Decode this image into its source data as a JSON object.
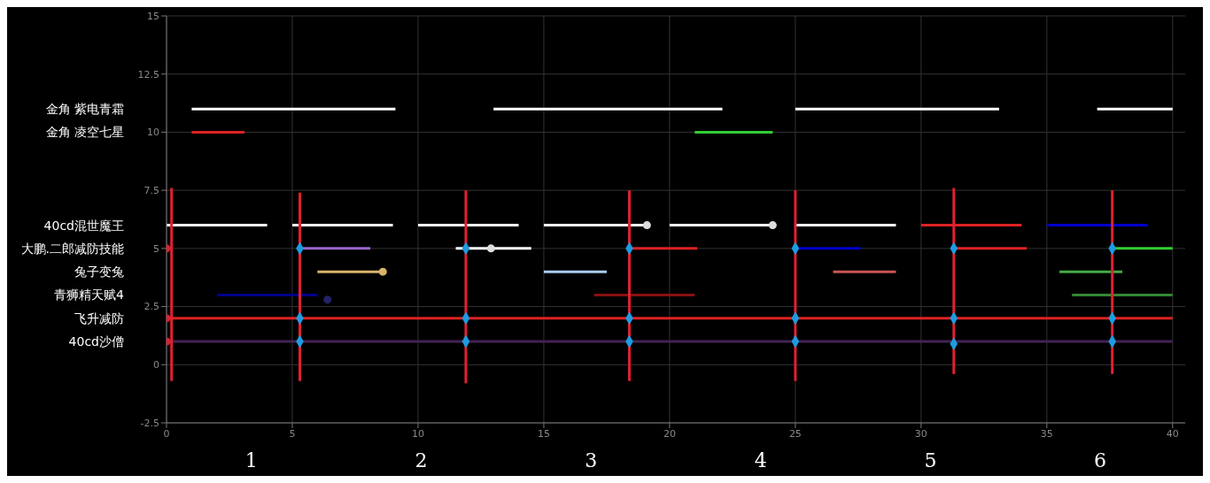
{
  "chart_data": {
    "type": "line",
    "xlim": [
      0,
      40.5
    ],
    "ylim": [
      -2.5,
      15
    ],
    "xticks": [
      0,
      5,
      10,
      15,
      20,
      25,
      30,
      35,
      40
    ],
    "yticks": [
      -2.5,
      0,
      2.5,
      5,
      7.5,
      10,
      12.5,
      15
    ],
    "grid": true,
    "marker": "none",
    "line_style": "solid",
    "annotations": [
      "金角 紫电青霜",
      "金角 凌空七星",
      "40cd混世魔王",
      "大鹏.二郎减防技能",
      "兔子变兔",
      "青狮精天赋4",
      "飞升减防",
      "40cd沙僧",
      "1",
      "2",
      "3",
      "4",
      "5",
      "6"
    ],
    "series": [
      {
        "x": [
          1,
          9.1
        ],
        "values": [
          11,
          11
        ],
        "color": "#ffffff"
      },
      {
        "x": [
          13,
          22.1
        ],
        "values": [
          11,
          11
        ],
        "color": "#ffffff"
      },
      {
        "x": [
          25,
          33.1
        ],
        "values": [
          11,
          11
        ],
        "color": "#ffffff"
      },
      {
        "x": [
          37,
          40
        ],
        "values": [
          11,
          11
        ],
        "color": "#ffffff"
      },
      {
        "x": [
          1,
          3.1
        ],
        "values": [
          10,
          10
        ],
        "color": "#dd2222"
      },
      {
        "x": [
          21,
          24.1
        ],
        "values": [
          10,
          10
        ],
        "color": "#33cc33"
      },
      {
        "x": [
          0,
          4
        ],
        "values": [
          6,
          6
        ],
        "color": "#ffffff"
      },
      {
        "x": [
          5,
          9
        ],
        "values": [
          6,
          6
        ],
        "color": "#ffffff"
      },
      {
        "x": [
          10,
          14
        ],
        "values": [
          6,
          6
        ],
        "color": "#ffffff"
      },
      {
        "x": [
          15,
          19
        ],
        "values": [
          6,
          6
        ],
        "color": "#ffffff"
      },
      {
        "x": [
          20,
          24
        ],
        "values": [
          6,
          6
        ],
        "color": "#ffffff"
      },
      {
        "x": [
          25,
          29
        ],
        "values": [
          6,
          6
        ],
        "color": "#ffffff"
      },
      {
        "x": [
          30,
          34
        ],
        "values": [
          6,
          6
        ],
        "color": "#dd2222"
      },
      {
        "x": [
          35,
          39
        ],
        "values": [
          6,
          6
        ],
        "color": "#0000cc"
      },
      {
        "x": [
          5.3,
          8.1
        ],
        "values": [
          5,
          5
        ],
        "color": "#9966cc"
      },
      {
        "x": [
          11.5,
          14.5
        ],
        "values": [
          5,
          5
        ],
        "color": "#ffffff"
      },
      {
        "x": [
          18.3,
          21.1
        ],
        "values": [
          5,
          5
        ],
        "color": "#dd2222"
      },
      {
        "x": [
          25,
          27.6
        ],
        "values": [
          5,
          5
        ],
        "color": "#0000cc"
      },
      {
        "x": [
          31.2,
          34.2
        ],
        "values": [
          5,
          5
        ],
        "color": "#dd2222"
      },
      {
        "x": [
          37.6,
          40
        ],
        "values": [
          5,
          5
        ],
        "color": "#33cc33"
      },
      {
        "x": [
          6,
          8.6
        ],
        "values": [
          4,
          4
        ],
        "color": "#d9b36c"
      },
      {
        "x": [
          15,
          17.5
        ],
        "values": [
          4,
          4
        ],
        "color": "#aaccee"
      },
      {
        "x": [
          26.5,
          29
        ],
        "values": [
          4,
          4
        ],
        "color": "#cc5555"
      },
      {
        "x": [
          35.5,
          38
        ],
        "values": [
          4,
          4
        ],
        "color": "#44aa44"
      },
      {
        "x": [
          2,
          6
        ],
        "values": [
          3,
          3
        ],
        "color": "#000088"
      },
      {
        "x": [
          17,
          21
        ],
        "values": [
          3,
          3
        ],
        "color": "#881111"
      },
      {
        "x": [
          36,
          40
        ],
        "values": [
          3,
          3
        ],
        "color": "#338833"
      },
      {
        "x": [
          0,
          40
        ],
        "values": [
          2,
          2
        ],
        "color": "#dd2222"
      },
      {
        "x": [
          0,
          40
        ],
        "values": [
          1,
          1
        ],
        "color": "#442255"
      },
      {
        "x": [
          0.2,
          0.2
        ],
        "values": [
          -0.7,
          7.6
        ],
        "color": "#e02030"
      },
      {
        "x": [
          5.3,
          5.3
        ],
        "values": [
          -0.7,
          7.4
        ],
        "color": "#e02030"
      },
      {
        "x": [
          11.9,
          11.9
        ],
        "values": [
          -0.8,
          7.5
        ],
        "color": "#e02030"
      },
      {
        "x": [
          18.4,
          18.4
        ],
        "values": [
          -0.7,
          7.5
        ],
        "color": "#e02030"
      },
      {
        "x": [
          25,
          25
        ],
        "values": [
          -0.7,
          7.5
        ],
        "color": "#e02030"
      },
      {
        "x": [
          31.3,
          31.3
        ],
        "values": [
          -0.4,
          7.6
        ],
        "color": "#e02030"
      },
      {
        "x": [
          37.6,
          37.6
        ],
        "values": [
          -0.4,
          7.5
        ],
        "color": "#e02030"
      },
      {
        "type": "scatter",
        "marker": "circle",
        "x": [
          19.1,
          24.1,
          12.9,
          8.6,
          6.4
        ],
        "values": [
          6,
          6,
          5,
          4,
          2.8
        ],
        "colors": [
          "#dddddd",
          "#dddddd",
          "#dddddd",
          "#d9b36c",
          "#222266"
        ]
      },
      {
        "type": "scatter",
        "marker": "circle",
        "x": [
          0,
          0,
          0
        ],
        "values": [
          5,
          2,
          1
        ],
        "color": "#e02030"
      },
      {
        "type": "scatter",
        "marker": "diamond",
        "x": [
          5.3,
          11.9,
          18.4,
          25,
          31.3,
          37.6,
          5.3,
          11.9,
          18.4,
          25,
          31.3,
          37.6,
          5.3,
          11.9,
          18.4,
          25,
          31.3,
          37.6
        ],
        "values": [
          5,
          5,
          5,
          5,
          5,
          5,
          2,
          2,
          2,
          2,
          2,
          2,
          1,
          1,
          1,
          1,
          0.9,
          1
        ],
        "color": "#1e9be0"
      }
    ]
  }
}
